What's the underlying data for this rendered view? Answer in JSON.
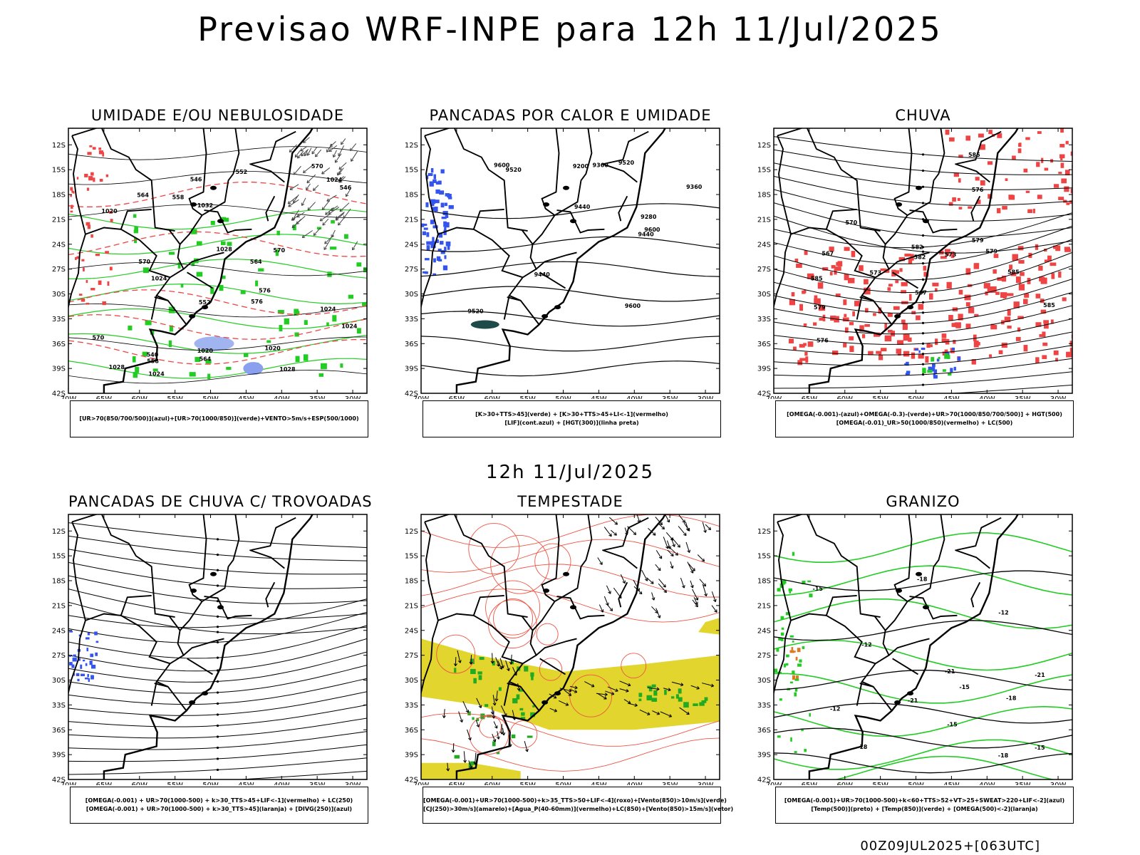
{
  "title": "Previsao WRF-INPE  para 12h 11/Jul/2025",
  "subtitle": "12h 11/Jul/2025",
  "footer": "00Z09JUL2025+[063UTC]",
  "axes": {
    "lat_ticks": [
      "12S",
      "15S",
      "18S",
      "21S",
      "24S",
      "27S",
      "30S",
      "33S",
      "36S",
      "39S",
      "42S"
    ],
    "lon_ticks": [
      "70W",
      "65W",
      "60W",
      "55W",
      "50W",
      "45W",
      "40W",
      "35W",
      "30W"
    ]
  },
  "panels": [
    {
      "id": "umidade",
      "title": "UMIDADE E/OU NEBULOSIDADE",
      "legend": [
        "[UR>70(850/700/500)](azul)+[UR>70(1000/850)](verde)+VENTO>5m/s+ESP(500/1000)"
      ],
      "contour_labels": [
        "1020",
        "1020",
        "1024",
        "1024",
        "1028",
        "1028",
        "1032",
        "1024",
        "1020",
        "1024",
        "1028",
        "1024",
        "570",
        "570",
        "564",
        "564",
        "558",
        "552",
        "546",
        "540",
        "546",
        "552",
        "558",
        "564",
        "570",
        "576",
        "570",
        "576"
      ]
    },
    {
      "id": "pancadas-calor",
      "title": "PANCADAS POR CALOR E UMIDADE",
      "legend": [
        "[K>30+TTS>45](verde) + [K>30+TTS>45+LI<-1](vermelho)",
        "[LIF](cont.azul) + [HGT(300)](linha preta)"
      ],
      "contour_labels": [
        "9600",
        "9600",
        "9520",
        "9520",
        "9440",
        "9440",
        "9360",
        "9360",
        "9280",
        "9200",
        "9520",
        "9440",
        "9600"
      ]
    },
    {
      "id": "chuva",
      "title": "CHUVA",
      "legend": [
        "[OMEGA(-0.001)-(azul)+OMEGA(-0.3)-(verde)+UR>70(1000/850/700/500)] + HGT(500)",
        "[OMEGA(-0.01)_UR>50(1000/850)(vermelho) + LC(500)"
      ],
      "contour_labels": [
        "585",
        "585",
        "582",
        "579",
        "579",
        "576",
        "576",
        "573",
        "573",
        "570",
        "567",
        "567",
        "579",
        "582",
        "585",
        "585"
      ]
    },
    {
      "id": "trovoadas",
      "title": "PANCADAS DE CHUVA C/ TROVOADAS",
      "legend": [
        "[OMEGA(-0.001) + UR>70(1000-500) + k>30_TTS>45+LIF<-1](vermelho) + LC(250)",
        "[OMEGA(-0.001) + UR>70(1000-500) + k>30_TTS>45](laranja) + [DIVG(250)](azul)"
      ],
      "contour_labels": []
    },
    {
      "id": "tempestade",
      "title": "TEMPESTADE",
      "legend": [
        "[OMEGA(-0.001)+UR>70(1000-500)+k>35_TTS>50+LIF<-4](roxo)+[Vento(850)>10m/s](verde)",
        "[CJ(250)>30m/s](amarelo)+[Agua_P(40-60mm)](vermelho)+LC(850)+[Vento(850)>15m/s](vetor)"
      ],
      "contour_labels": []
    },
    {
      "id": "granizo",
      "title": "GRANIZO",
      "legend": [
        "[OMEGA(-0.001)+UR>70(1000-500)+k<60+TTS>52+VT>25+SWEAT>220+LIF<-2](azul)",
        "[Temp(500)](preto) + [Temp(850)](verde) + [OMEGA(500)<-2](laranja)"
      ],
      "contour_labels": [
        "-12",
        "-12",
        "-15",
        "-15",
        "-18",
        "-18",
        "-21",
        "-21",
        "-18",
        "-15",
        "-12",
        "-15",
        "-18",
        "-21"
      ]
    }
  ]
}
